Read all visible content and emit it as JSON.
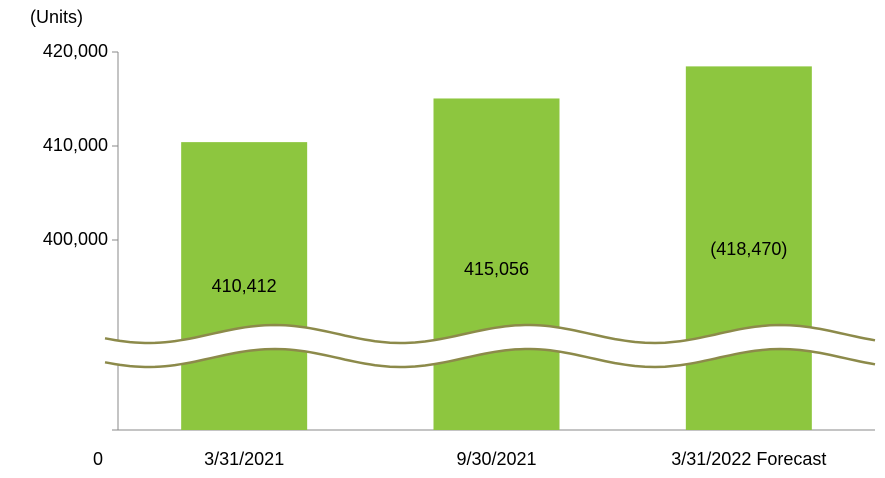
{
  "chart_data": {
    "type": "bar",
    "y_unit_label": "(Units)",
    "categories": [
      "3/31/2021",
      "9/30/2021",
      "3/31/2022 Forecast"
    ],
    "values": [
      410412,
      415056,
      418470
    ],
    "value_labels": [
      "410,412",
      "415,056",
      "(418,470)"
    ],
    "color": "#8dc63f",
    "ylim": [
      0,
      420000
    ],
    "yticks": [
      0,
      {
        "value": 400000,
        "label": "400,000"
      },
      {
        "value": 410000,
        "label": "410,000"
      },
      {
        "value": 420000,
        "label": "420,000"
      }
    ],
    "axis_break": true
  }
}
